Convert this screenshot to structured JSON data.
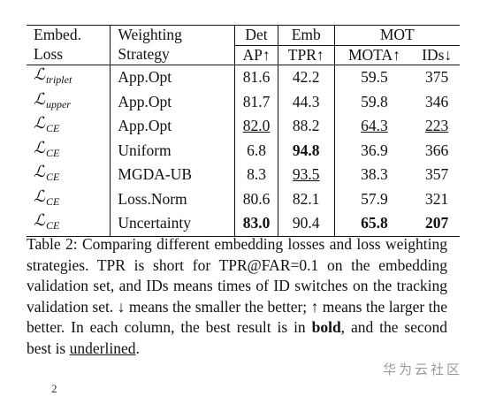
{
  "table": {
    "header_row1": [
      "Embed.",
      "Weighting",
      "Det",
      "Emb",
      "MOT"
    ],
    "header_row2": [
      "Loss",
      "Strategy",
      "AP↑",
      "TPR↑",
      "MOTA↑",
      "IDs↓"
    ],
    "rows": [
      {
        "loss_symbol": "ℒ",
        "loss_sub": "triplet",
        "strategy": "App.Opt",
        "ap": "81.6",
        "tpr": "42.2",
        "mota": "59.5",
        "ids": "375"
      },
      {
        "loss_symbol": "ℒ",
        "loss_sub": "upper",
        "strategy": "App.Opt",
        "ap": "81.7",
        "tpr": "44.3",
        "mota": "59.8",
        "ids": "346"
      },
      {
        "loss_symbol": "ℒ",
        "loss_sub": "CE",
        "strategy": "App.Opt",
        "ap": "82.0",
        "tpr": "88.2",
        "mota": "64.3",
        "ids": "223"
      },
      {
        "loss_symbol": "ℒ",
        "loss_sub": "CE",
        "strategy": "Uniform",
        "ap": "6.8",
        "tpr": "94.8",
        "mota": "36.9",
        "ids": "366"
      },
      {
        "loss_symbol": "ℒ",
        "loss_sub": "CE",
        "strategy": "MGDA-UB",
        "ap": "8.3",
        "tpr": "93.5",
        "mota": "38.3",
        "ids": "357"
      },
      {
        "loss_symbol": "ℒ",
        "loss_sub": "CE",
        "strategy": "Loss.Norm",
        "ap": "80.6",
        "tpr": "82.1",
        "mota": "57.9",
        "ids": "321"
      },
      {
        "loss_symbol": "ℒ",
        "loss_sub": "CE",
        "strategy": "Uncertainty",
        "ap": "83.0",
        "tpr": "90.4",
        "mota": "65.8",
        "ids": "207"
      }
    ]
  },
  "caption": {
    "part1": "Table 2: Comparing different embedding losses and loss weighting strategies. TPR is short for TPR@FAR=0.1 on the embedding validation set, and IDs means times of ID switches on the tracking validation set. ↓ means the smaller the better; ↑ means the larger the better. In each column, the best result is in ",
    "bold_word": "bold",
    "part2": ", and the second best is ",
    "underline_word": "underlined",
    "part3": "."
  },
  "watermark": "华为云社区",
  "footnote_fragment": "2"
}
